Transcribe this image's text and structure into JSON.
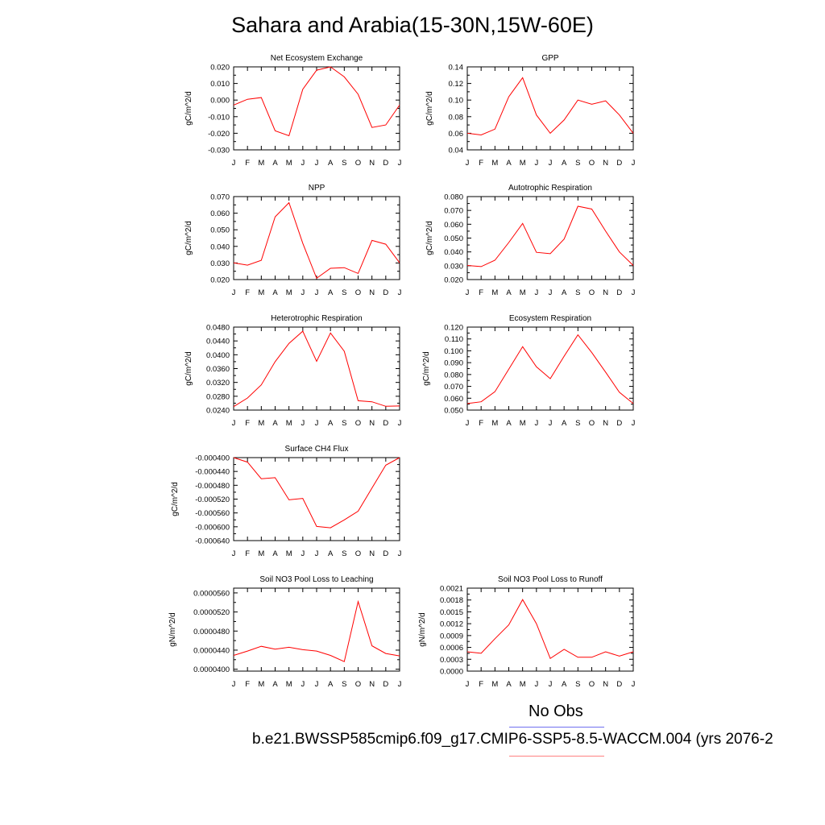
{
  "title": "Sahara and Arabia(15-30N,15W-60E)",
  "months": [
    "J",
    "F",
    "M",
    "A",
    "M",
    "J",
    "J",
    "A",
    "S",
    "O",
    "N",
    "D",
    "J"
  ],
  "colors": {
    "series": "#ff0000",
    "obs_line": "#7070f0",
    "model_line": "#ff8080"
  },
  "legend": {
    "obs_label": "No Obs",
    "case_label": "b.e21.BWSSP585cmip6.f09_g17.CMIP6-SSP5-8.5-WACCM.004 (yrs 2076-2"
  },
  "chart_data": [
    {
      "type": "line",
      "title": "Net Ecosystem Exchange",
      "ylabel": "gC/m^2/d",
      "ylim": [
        -0.03,
        0.02
      ],
      "yticks": [
        "0.020",
        "0.010",
        "0.000",
        "-0.010",
        "-0.020",
        "-0.030"
      ],
      "values": [
        -0.003,
        0.0005,
        0.0015,
        -0.0185,
        -0.0215,
        0.0065,
        0.018,
        0.02,
        0.014,
        0.0035,
        -0.0165,
        -0.015,
        -0.003
      ]
    },
    {
      "type": "line",
      "title": "GPP",
      "ylabel": "gC/m^2/d",
      "ylim": [
        0.04,
        0.14
      ],
      "yticks": [
        "0.14",
        "0.12",
        "0.10",
        "0.08",
        "0.06",
        "0.04"
      ],
      "values": [
        0.06,
        0.058,
        0.065,
        0.104,
        0.127,
        0.082,
        0.06,
        0.076,
        0.1,
        0.095,
        0.099,
        0.082,
        0.06
      ]
    },
    {
      "type": "line",
      "title": "NPP",
      "ylabel": "gC/m^2/d",
      "ylim": [
        0.02,
        0.07
      ],
      "yticks": [
        "0.070",
        "0.060",
        "0.050",
        "0.040",
        "0.030",
        "0.020"
      ],
      "values": [
        0.0301,
        0.0287,
        0.0316,
        0.0578,
        0.0663,
        0.0419,
        0.0208,
        0.0268,
        0.0272,
        0.0237,
        0.0436,
        0.0413,
        0.0301
      ]
    },
    {
      "type": "line",
      "title": "Autotrophic Respiration",
      "ylabel": "gC/m^2/d",
      "ylim": [
        0.02,
        0.08
      ],
      "yticks": [
        "0.080",
        "0.070",
        "0.060",
        "0.050",
        "0.040",
        "0.030",
        "0.020"
      ],
      "values": [
        0.0302,
        0.0294,
        0.034,
        0.0468,
        0.0606,
        0.0397,
        0.0387,
        0.0493,
        0.073,
        0.071,
        0.055,
        0.04,
        0.0302
      ]
    },
    {
      "type": "line",
      "title": "Heterotrophic Respiration",
      "ylabel": "gC/m^2/d",
      "ylim": [
        0.024,
        0.048
      ],
      "yticks": [
        "0.0480",
        "0.0440",
        "0.0400",
        "0.0360",
        "0.0320",
        "0.0280",
        "0.0240"
      ],
      "values": [
        0.025,
        0.0275,
        0.0313,
        0.038,
        0.0433,
        0.0468,
        0.0381,
        0.0463,
        0.041,
        0.0267,
        0.0264,
        0.0251,
        0.0252
      ]
    },
    {
      "type": "line",
      "title": "Ecosystem Respiration",
      "ylabel": "gC/m^2/d",
      "ylim": [
        0.05,
        0.12
      ],
      "yticks": [
        "0.120",
        "0.110",
        "0.100",
        "0.090",
        "0.080",
        "0.070",
        "0.060",
        "0.050"
      ],
      "values": [
        0.0555,
        0.057,
        0.0655,
        0.0845,
        0.1035,
        0.0865,
        0.0765,
        0.0955,
        0.1135,
        0.0985,
        0.082,
        0.065,
        0.0555
      ]
    },
    {
      "type": "line",
      "title": "Surface CH4 Flux",
      "ylabel": "gC/m^2/d",
      "ylim": [
        -0.00064,
        -0.0004
      ],
      "yticks": [
        "-0.000400",
        "-0.000440",
        "-0.000480",
        "-0.000520",
        "-0.000560",
        "-0.000600",
        "-0.000640"
      ],
      "values": [
        -0.0004,
        -0.000413,
        -0.000461,
        -0.000458,
        -0.000522,
        -0.000518,
        -0.000599,
        -0.000603,
        -0.00058,
        -0.000555,
        -0.000488,
        -0.000422,
        -0.0004
      ]
    },
    {
      "type": "line",
      "title": "Soil NO3 Pool Loss to Leaching",
      "ylabel": "gN/m^2/d",
      "ylim": [
        3.96e-05,
        5.7e-05
      ],
      "yticks": [
        "0.0000560",
        "0.0000520",
        "0.0000480",
        "0.0000440",
        "0.0000400"
      ],
      "tickvalues": [
        5.6e-05,
        5.2e-05,
        4.8e-05,
        4.4e-05,
        4e-05
      ],
      "values": [
        4.29e-05,
        4.38e-05,
        4.48e-05,
        4.42e-05,
        4.46e-05,
        4.41e-05,
        4.38e-05,
        4.29e-05,
        4.16e-05,
        5.42e-05,
        4.49e-05,
        4.33e-05,
        4.28e-05
      ]
    },
    {
      "type": "line",
      "title": "Soil NO3 Pool Loss to Runoff",
      "ylabel": "gN/m^2/d",
      "ylim": [
        0.0,
        0.0021
      ],
      "yticks": [
        "0.0021",
        "0.0018",
        "0.0015",
        "0.0012",
        "0.0009",
        "0.0006",
        "0.0003",
        "0.0000"
      ],
      "values": [
        0.00049,
        0.00045,
        0.00082,
        0.00117,
        0.00181,
        0.0012,
        0.00032,
        0.00055,
        0.00035,
        0.00035,
        0.00049,
        0.00038,
        0.00049
      ]
    }
  ]
}
